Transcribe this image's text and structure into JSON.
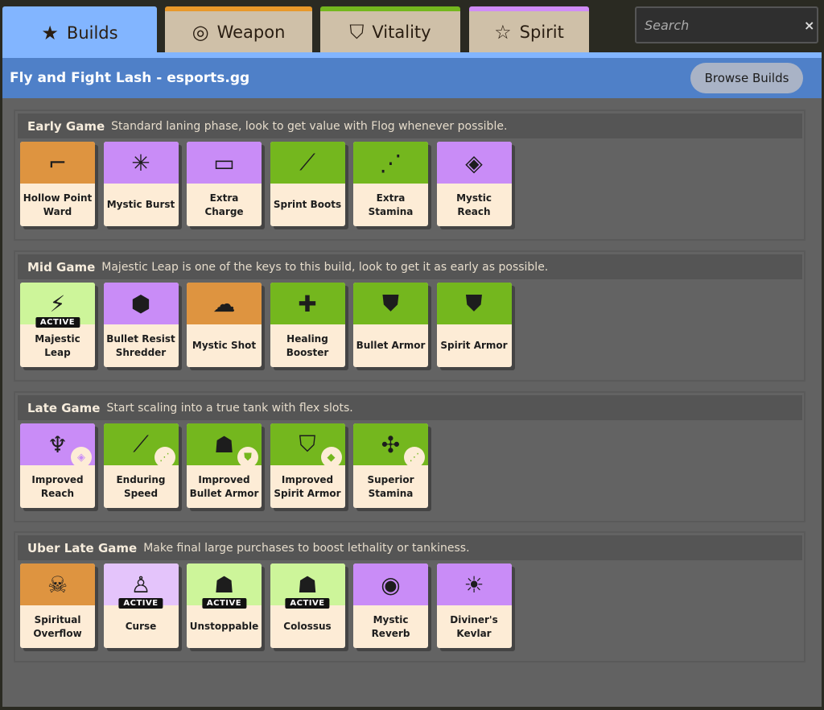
{
  "tabs": [
    {
      "label": "Builds",
      "icon": "★",
      "icon_name": "star-icon"
    },
    {
      "label": "Weapon",
      "icon": "◎",
      "icon_name": "weapon-icon"
    },
    {
      "label": "Vitality",
      "icon": "⛉",
      "icon_name": "vitality-shield-icon"
    },
    {
      "label": "Spirit",
      "icon": "☆",
      "icon_name": "spirit-star-icon"
    }
  ],
  "search": {
    "placeholder": "Search",
    "clear": "×"
  },
  "header": {
    "title": "Fly and Fight Lash - esports.gg",
    "browse_label": "Browse Builds"
  },
  "colors": {
    "weapon": "#de9440",
    "spirit": "#c98cf7",
    "vitality": "#74b71e",
    "active_vitality": "#cdf59a",
    "active_spirit": "#e4c4fb"
  },
  "sections": [
    {
      "name": "Early Game",
      "desc": "Standard laning phase, look to get value with Flog whenever possible.",
      "items": [
        {
          "label": "Hollow Point Ward",
          "color": "#de9440",
          "icon": "⌐"
        },
        {
          "label": "Mystic Burst",
          "color": "#c98cf7",
          "icon": "✳"
        },
        {
          "label": "Extra Charge",
          "color": "#c98cf7",
          "icon": "▭"
        },
        {
          "label": "Sprint Boots",
          "color": "#74b71e",
          "icon": "⟋"
        },
        {
          "label": "Extra Stamina",
          "color": "#74b71e",
          "icon": "⋰"
        },
        {
          "label": "Mystic Reach",
          "color": "#c98cf7",
          "icon": "◈"
        }
      ]
    },
    {
      "name": "Mid Game",
      "desc": "Majestic Leap is one of the keys to this build, look to get it as early as possible.",
      "items": [
        {
          "label": "Majestic Leap",
          "color": "#cdf59a",
          "icon": "⚡",
          "badge": "ACTIVE"
        },
        {
          "label": "Bullet Resist Shredder",
          "color": "#c98cf7",
          "icon": "⬢"
        },
        {
          "label": "Mystic Shot",
          "color": "#de9440",
          "icon": "☁"
        },
        {
          "label": "Healing Booster",
          "color": "#74b71e",
          "icon": "✚"
        },
        {
          "label": "Bullet Armor",
          "color": "#74b71e",
          "icon": "⛊"
        },
        {
          "label": "Spirit Armor",
          "color": "#74b71e",
          "icon": "⛊"
        }
      ]
    },
    {
      "name": "Late Game",
      "desc": "Start scaling into a true tank with flex slots.",
      "items": [
        {
          "label": "Improved Reach",
          "color": "#c98cf7",
          "icon": "♆",
          "sub": "◈"
        },
        {
          "label": "Enduring Speed",
          "color": "#74b71e",
          "icon": "⟋",
          "sub": "⋰"
        },
        {
          "label": "Improved Bullet Armor",
          "color": "#74b71e",
          "icon": "☗",
          "sub": "⛊"
        },
        {
          "label": "Improved Spirit Armor",
          "color": "#74b71e",
          "icon": "⛉",
          "sub": "◆"
        },
        {
          "label": "Superior Stamina",
          "color": "#74b71e",
          "icon": "✣",
          "sub": "⋰"
        }
      ]
    },
    {
      "name": "Uber Late Game",
      "desc": "Make final large purchases to boost lethality or tankiness.",
      "items": [
        {
          "label": "Spiritual Overflow",
          "color": "#de9440",
          "icon": "☠"
        },
        {
          "label": "Curse",
          "color": "#e4c4fb",
          "icon": "♙",
          "badge": "ACTIVE"
        },
        {
          "label": "Unstoppable",
          "color": "#cdf59a",
          "icon": "☗",
          "badge": "ACTIVE"
        },
        {
          "label": "Colossus",
          "color": "#cdf59a",
          "icon": "☗",
          "badge": "ACTIVE"
        },
        {
          "label": "Mystic Reverb",
          "color": "#c98cf7",
          "icon": "◉"
        },
        {
          "label": "Diviner's Kevlar",
          "color": "#c98cf7",
          "icon": "☀"
        }
      ]
    }
  ]
}
